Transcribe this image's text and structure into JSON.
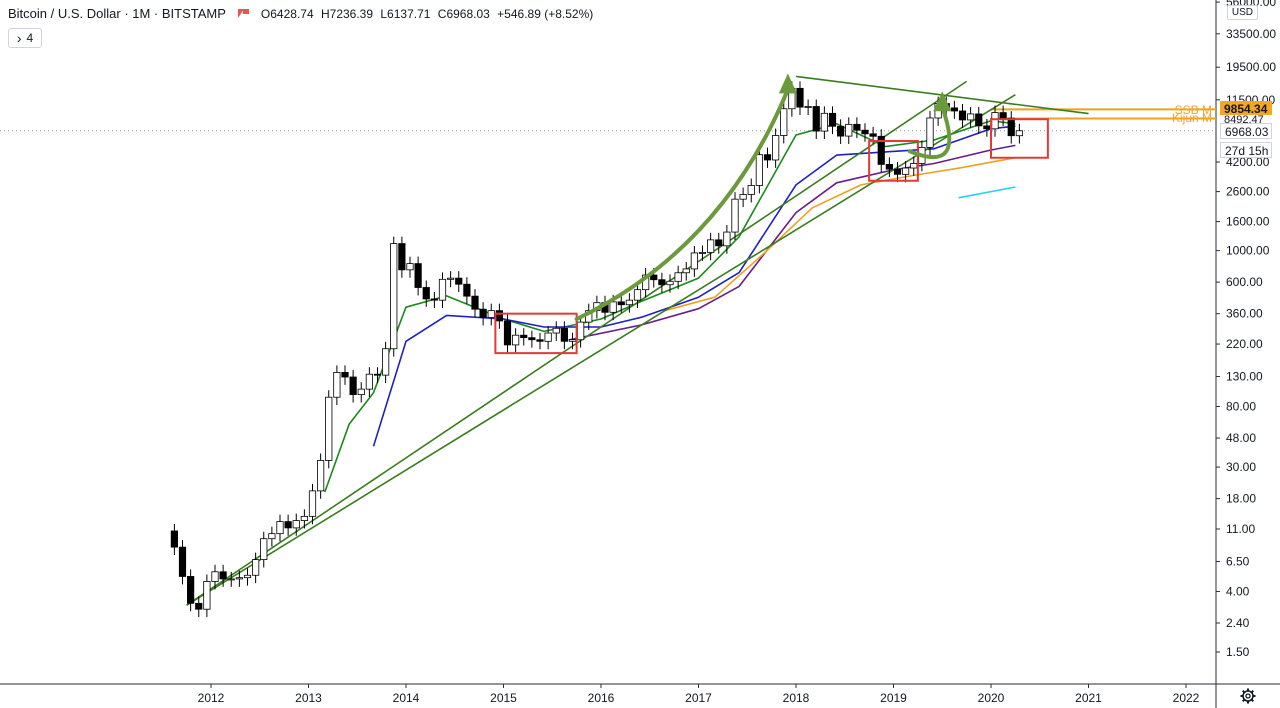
{
  "header": {
    "symbol_title": "Bitcoin / U.S. Dollar · 1M · BITSTAMP",
    "open": "O6428.74",
    "high": "H7236.39",
    "low": "L6137.71",
    "close": "C6968.03",
    "change": "+546.89 (+8.52%)",
    "indicator_count": "4",
    "indicator_toggle_symbol": "›",
    "currency": "USD"
  },
  "price_tags": {
    "ssb_label": "SSB M",
    "kijun_label": "Kijun M",
    "ssb_value": "9854.34",
    "kijun_value": "8492.47",
    "last_price": "6968.03",
    "countdown": "27d 15h"
  },
  "colors": {
    "up_candle": "#ffffff",
    "down_candle": "#000000",
    "ma_green": "#1a8a1a",
    "ma_blue": "#1f1fc8",
    "ma_purple": "#6a1b8a",
    "ma_orange": "#f0a020",
    "ma_cyan": "#22d3ee",
    "trendline": "#3a7d1e",
    "arrow": "#6a9a3a",
    "box": "#e53935",
    "price_tag_orange": "#f5a623",
    "axis_text": "#131722"
  },
  "chart_data": {
    "type": "candlestick",
    "title": "Bitcoin / U.S. Dollar · 1M · BITSTAMP",
    "y_scale": "log",
    "ylim": [
      1.2,
      58000
    ],
    "xlim": [
      "2011-06",
      "2022-06"
    ],
    "x_tick_labels": [
      "2012",
      "2013",
      "2014",
      "2015",
      "2016",
      "2017",
      "2018",
      "2019",
      "2020",
      "2021",
      "2022"
    ],
    "y_tick_labels": [
      {
        "label": "1.50",
        "value": 1.5
      },
      {
        "label": "2.40",
        "value": 2.4
      },
      {
        "label": "4.00",
        "value": 4
      },
      {
        "label": "6.50",
        "value": 6.5
      },
      {
        "label": "11.00",
        "value": 11
      },
      {
        "label": "18.00",
        "value": 18
      },
      {
        "label": "30.00",
        "value": 30
      },
      {
        "label": "48.00",
        "value": 48
      },
      {
        "label": "80.00",
        "value": 80
      },
      {
        "label": "130.00",
        "value": 130
      },
      {
        "label": "220.00",
        "value": 220
      },
      {
        "label": "360.00",
        "value": 360
      },
      {
        "label": "600.00",
        "value": 600
      },
      {
        "label": "1000.00",
        "value": 1000
      },
      {
        "label": "1600.00",
        "value": 1600
      },
      {
        "label": "2600.00",
        "value": 2600
      },
      {
        "label": "4200.00",
        "value": 4200
      },
      {
        "label": "11500.00",
        "value": 11500
      },
      {
        "label": "19500.00",
        "value": 19500
      },
      {
        "label": "33500.00",
        "value": 33500
      },
      {
        "label": "56000.00",
        "value": 56000
      }
    ],
    "monthly_close": [
      [
        "2011-08",
        8.2
      ],
      [
        "2011-09",
        5.1
      ],
      [
        "2011-10",
        3.3
      ],
      [
        "2011-11",
        3.0
      ],
      [
        "2011-12",
        4.7
      ],
      [
        "2012-01",
        5.5
      ],
      [
        "2012-02",
        4.9
      ],
      [
        "2012-03",
        4.9
      ],
      [
        "2012-04",
        5.0
      ],
      [
        "2012-05",
        5.2
      ],
      [
        "2012-06",
        6.7
      ],
      [
        "2012-07",
        9.4
      ],
      [
        "2012-08",
        10.2
      ],
      [
        "2012-09",
        12.4
      ],
      [
        "2012-10",
        11.2
      ],
      [
        "2012-11",
        12.6
      ],
      [
        "2012-12",
        13.5
      ],
      [
        "2013-01",
        20.4
      ],
      [
        "2013-02",
        33.4
      ],
      [
        "2013-03",
        93.0
      ],
      [
        "2013-04",
        139
      ],
      [
        "2013-05",
        129
      ],
      [
        "2013-06",
        97
      ],
      [
        "2013-07",
        106
      ],
      [
        "2013-08",
        135
      ],
      [
        "2013-09",
        133
      ],
      [
        "2013-10",
        204
      ],
      [
        "2013-11",
        1120
      ],
      [
        "2013-12",
        732
      ],
      [
        "2014-01",
        810
      ],
      [
        "2014-02",
        550
      ],
      [
        "2014-03",
        457
      ],
      [
        "2014-04",
        448
      ],
      [
        "2014-05",
        628
      ],
      [
        "2014-06",
        640
      ],
      [
        "2014-07",
        580
      ],
      [
        "2014-08",
        478
      ],
      [
        "2014-09",
        387
      ],
      [
        "2014-10",
        338
      ],
      [
        "2014-11",
        378
      ],
      [
        "2014-12",
        320
      ],
      [
        "2015-01",
        217
      ],
      [
        "2015-02",
        254
      ],
      [
        "2015-03",
        244
      ],
      [
        "2015-04",
        236
      ],
      [
        "2015-05",
        230
      ],
      [
        "2015-06",
        263
      ],
      [
        "2015-07",
        284
      ],
      [
        "2015-08",
        230
      ],
      [
        "2015-09",
        236
      ],
      [
        "2015-10",
        314
      ],
      [
        "2015-11",
        378
      ],
      [
        "2015-12",
        430
      ],
      [
        "2016-01",
        368
      ],
      [
        "2016-02",
        436
      ],
      [
        "2016-03",
        416
      ],
      [
        "2016-04",
        448
      ],
      [
        "2016-05",
        531
      ],
      [
        "2016-06",
        673
      ],
      [
        "2016-07",
        624
      ],
      [
        "2016-08",
        575
      ],
      [
        "2016-09",
        608
      ],
      [
        "2016-10",
        698
      ],
      [
        "2016-11",
        743
      ],
      [
        "2016-12",
        963
      ],
      [
        "2017-01",
        970
      ],
      [
        "2017-02",
        1190
      ],
      [
        "2017-03",
        1080
      ],
      [
        "2017-04",
        1350
      ],
      [
        "2017-05",
        2300
      ],
      [
        "2017-06",
        2480
      ],
      [
        "2017-07",
        2870
      ],
      [
        "2017-08",
        4730
      ],
      [
        "2017-09",
        4340
      ],
      [
        "2017-10",
        6450
      ],
      [
        "2017-11",
        9950
      ],
      [
        "2017-12",
        13850
      ],
      [
        "2018-01",
        10220
      ],
      [
        "2018-02",
        10320
      ],
      [
        "2018-03",
        6930
      ],
      [
        "2018-04",
        9240
      ],
      [
        "2018-05",
        7490
      ],
      [
        "2018-06",
        6390
      ],
      [
        "2018-07",
        7730
      ],
      [
        "2018-08",
        7030
      ],
      [
        "2018-09",
        6630
      ],
      [
        "2018-10",
        6370
      ],
      [
        "2018-11",
        4040
      ],
      [
        "2018-12",
        3740
      ],
      [
        "2019-01",
        3440
      ],
      [
        "2019-02",
        3810
      ],
      [
        "2019-03",
        4100
      ],
      [
        "2019-04",
        5320
      ],
      [
        "2019-05",
        8570
      ],
      [
        "2019-06",
        10820
      ],
      [
        "2019-07",
        10090
      ],
      [
        "2019-08",
        9600
      ],
      [
        "2019-09",
        8300
      ],
      [
        "2019-10",
        9150
      ],
      [
        "2019-11",
        7540
      ],
      [
        "2019-12",
        7190
      ],
      [
        "2020-01",
        9350
      ],
      [
        "2020-02",
        8540
      ],
      [
        "2020-03",
        6430
      ],
      [
        "2020-04",
        6968
      ]
    ],
    "moving_averages": [
      {
        "color": "green",
        "points": [
          [
            "2013-03",
            20
          ],
          [
            "2013-06",
            60
          ],
          [
            "2013-09",
            100
          ],
          [
            "2014-01",
            400
          ],
          [
            "2014-06",
            480
          ],
          [
            "2015-01",
            330
          ],
          [
            "2015-06",
            270
          ],
          [
            "2016-01",
            330
          ],
          [
            "2016-06",
            440
          ],
          [
            "2017-01",
            640
          ],
          [
            "2017-06",
            1250
          ],
          [
            "2018-01",
            6500
          ],
          [
            "2018-06",
            7800
          ],
          [
            "2018-12",
            5400
          ],
          [
            "2019-06",
            6000
          ],
          [
            "2020-01",
            8200
          ],
          [
            "2020-04",
            7800
          ]
        ]
      },
      {
        "color": "blue",
        "points": [
          [
            "2013-09",
            42
          ],
          [
            "2014-01",
            230
          ],
          [
            "2014-06",
            350
          ],
          [
            "2015-01",
            330
          ],
          [
            "2015-06",
            290
          ],
          [
            "2016-01",
            290
          ],
          [
            "2016-06",
            340
          ],
          [
            "2017-01",
            470
          ],
          [
            "2017-06",
            700
          ],
          [
            "2018-01",
            2900
          ],
          [
            "2018-06",
            4700
          ],
          [
            "2018-12",
            4950
          ],
          [
            "2019-06",
            5200
          ],
          [
            "2020-01",
            7200
          ],
          [
            "2020-04",
            7500
          ]
        ]
      },
      {
        "color": "purple",
        "points": [
          [
            "2015-09",
            235
          ],
          [
            "2016-06",
            300
          ],
          [
            "2017-01",
            390
          ],
          [
            "2017-06",
            560
          ],
          [
            "2018-01",
            1850
          ],
          [
            "2018-06",
            3000
          ],
          [
            "2019-01",
            3700
          ],
          [
            "2019-06",
            4100
          ],
          [
            "2020-01",
            5100
          ],
          [
            "2020-04",
            5500
          ]
        ]
      },
      {
        "color": "orange",
        "points": [
          [
            "2016-09",
            380
          ],
          [
            "2017-03",
            470
          ],
          [
            "2017-09",
            950
          ],
          [
            "2018-03",
            2000
          ],
          [
            "2018-09",
            2900
          ],
          [
            "2019-03",
            3350
          ],
          [
            "2019-09",
            3800
          ],
          [
            "2020-04",
            4500
          ]
        ]
      },
      {
        "color": "cyan",
        "points": [
          [
            "2019-09",
            2350
          ],
          [
            "2020-04",
            2800
          ]
        ]
      }
    ],
    "trendlines": [
      {
        "from": [
          "2011-10",
          3.2
        ],
        "to": [
          "2019-10",
          15500
        ]
      },
      {
        "from": [
          "2011-10",
          3.2
        ],
        "to": [
          "2020-04",
          12500
        ]
      },
      {
        "from": [
          "2018-01",
          16800
        ],
        "to": [
          "2021-01",
          9200
        ]
      }
    ],
    "highlight_boxes": [
      {
        "from": [
          "2014-12",
          360
        ],
        "to": [
          "2015-10",
          190
        ]
      },
      {
        "from": [
          "2018-10",
          5900
        ],
        "to": [
          "2019-04",
          3100
        ]
      },
      {
        "from": [
          "2020-01",
          8400
        ],
        "to": [
          "2020-08",
          4500
        ]
      }
    ],
    "arrows": [
      {
        "from": [
          "2015-10",
          330
        ],
        "to": [
          "2017-12",
          16000
        ]
      },
      {
        "from": [
          "2019-03",
          5000
        ],
        "to": [
          "2019-07",
          12000
        ]
      }
    ],
    "horizontal_lines": [
      {
        "value": 9854.34,
        "color": "orange"
      },
      {
        "value": 8492.47,
        "color": "orange"
      },
      {
        "value": 6968.03,
        "style": "dotted"
      }
    ]
  }
}
